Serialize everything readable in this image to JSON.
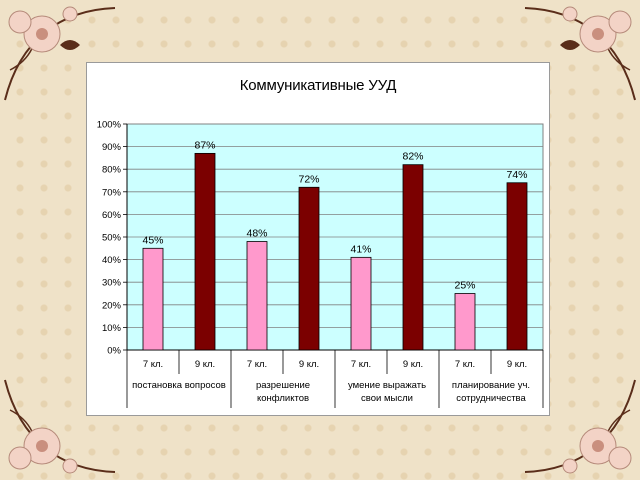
{
  "colors": {
    "frame_bg": "#efe2c8",
    "plot_bg": "#ccffff",
    "bar_7": "#ff99cc",
    "bar_9": "#7b0000",
    "ornament_pink": "#f3d3c6",
    "ornament_brown": "#5a2d1a"
  },
  "chart_data": {
    "type": "bar",
    "title": "Коммуникативные УУД",
    "ylim": [
      0,
      100
    ],
    "y_ticks": [
      "0%",
      "10%",
      "20%",
      "30%",
      "40%",
      "50%",
      "60%",
      "70%",
      "80%",
      "90%",
      "100%"
    ],
    "grid": true,
    "groups": [
      {
        "label": "постановка вопросов",
        "lines": [
          "постановка вопросов"
        ]
      },
      {
        "label": "разрешение конфликтов",
        "lines": [
          "разрешение",
          "конфликтов"
        ]
      },
      {
        "label": "умение выражать свои мысли",
        "lines": [
          "умение выражать",
          "свои мысли"
        ]
      },
      {
        "label": "планирование уч. сотрудничества",
        "lines": [
          "планирование уч.",
          "сотрудничества"
        ]
      }
    ],
    "categories": [
      "7 кл.",
      "9 кл.",
      "7 кл.",
      "9 кл.",
      "7 кл.",
      "9 кл.",
      "7 кл.",
      "9 кл."
    ],
    "values": [
      45,
      87,
      48,
      72,
      41,
      82,
      25,
      74
    ],
    "data_labels": [
      "45%",
      "87%",
      "48%",
      "72%",
      "41%",
      "82%",
      "25%",
      "74%"
    ]
  }
}
